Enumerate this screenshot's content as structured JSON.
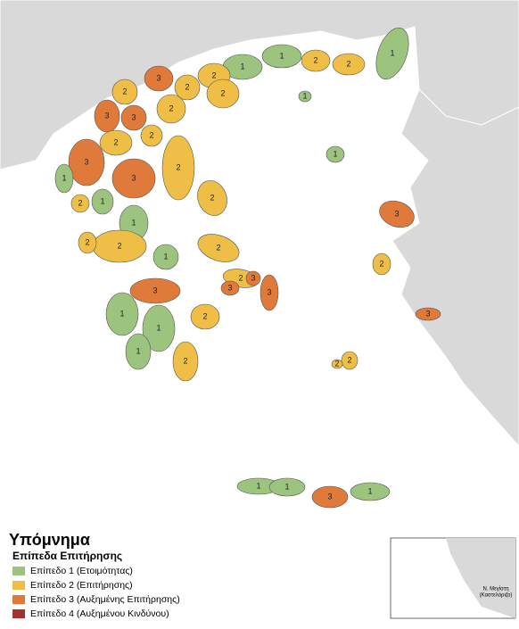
{
  "legend": {
    "title": "Υπόμνημα",
    "subtitle": "Επίπεδα Επιτήρησης",
    "items": [
      {
        "label": "Επίπεδο 1 (Ετοιμότητας)",
        "color": "#9cc47f"
      },
      {
        "label": "Επίπεδο 2 (Επιτήρησης)",
        "color": "#efbe46"
      },
      {
        "label": "Επίπεδο 3 (Αυξημένης Επιτήρησης)",
        "color": "#df7a3b"
      },
      {
        "label": "Επίπεδο 4 (Αυξημένου Κινδύνου)",
        "color": "#a3322e"
      }
    ]
  },
  "inset": {
    "label_line1": "Ν. Μεγίστη",
    "label_line2": "(Καστελόριζο)"
  },
  "regions": [
    {
      "level": 1
    },
    {
      "level": 1
    },
    {
      "level": 2
    },
    {
      "level": 2
    },
    {
      "level": 1
    },
    {
      "level": 1
    },
    {
      "level": 2
    },
    {
      "level": 3
    },
    {
      "level": 2
    },
    {
      "level": 2
    },
    {
      "level": 2
    },
    {
      "level": 3
    },
    {
      "level": 2
    },
    {
      "level": 3
    },
    {
      "level": 2
    },
    {
      "level": 2
    },
    {
      "level": 3
    },
    {
      "level": 3
    },
    {
      "level": 2
    },
    {
      "level": 1
    },
    {
      "level": 1
    },
    {
      "level": 2
    },
    {
      "level": 1
    },
    {
      "level": 2
    },
    {
      "level": 2
    },
    {
      "level": 1
    },
    {
      "level": 2
    },
    {
      "level": 2
    },
    {
      "level": 2
    },
    {
      "level": 3
    },
    {
      "level": 3
    },
    {
      "level": 3
    },
    {
      "level": 3
    },
    {
      "level": 1
    },
    {
      "level": 1
    },
    {
      "level": 1
    },
    {
      "level": 2
    },
    {
      "level": 2
    },
    {
      "level": 1
    },
    {
      "level": 3
    },
    {
      "level": 2
    },
    {
      "level": 3
    },
    {
      "level": 2
    },
    {
      "level": 2
    },
    {
      "level": 1
    },
    {
      "level": 1
    },
    {
      "level": 3
    },
    {
      "level": 1
    },
    {
      "level": 2
    }
  ]
}
